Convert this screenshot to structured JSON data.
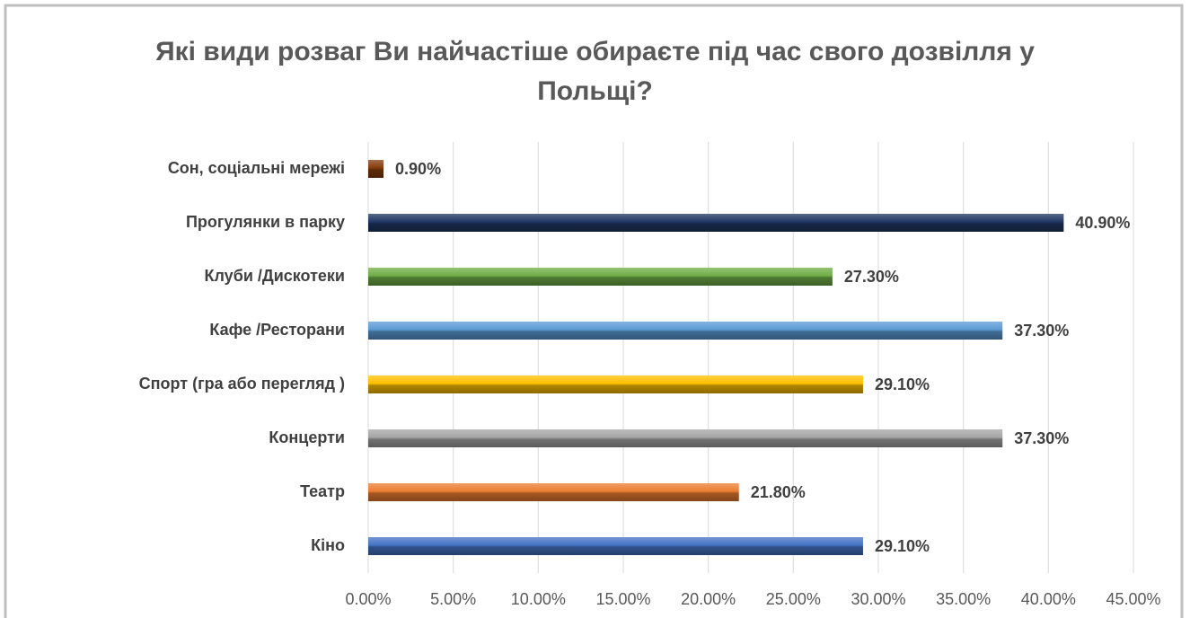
{
  "chart_data": {
    "type": "bar",
    "orientation": "horizontal",
    "title": "Які види розваг Ви найчастіше обираєте під час свого дозвілля у Польщі?",
    "categories": [
      "Сон, соціальні мережі",
      "Прогулянки в парку",
      "Клуби /Дискотеки",
      "Кафе /Ресторани",
      "Спорт (гра або перегляд )",
      "Концерти",
      "Театр",
      "Кіно"
    ],
    "values": [
      0.9,
      40.9,
      27.3,
      37.3,
      29.1,
      37.3,
      21.8,
      29.1
    ],
    "value_labels": [
      "0.90%",
      "40.90%",
      "27.30%",
      "37.30%",
      "29.10%",
      "37.30%",
      "21.80%",
      "29.10%"
    ],
    "colors": [
      "#843c0c",
      "#203864",
      "#70ad47",
      "#5b9bd5",
      "#ffc000",
      "#a5a5a5",
      "#ed7d31",
      "#4472c4"
    ],
    "xlim": [
      0,
      45
    ],
    "xticks": [
      {
        "value": 0,
        "label": "0.00%"
      },
      {
        "value": 5,
        "label": "5.00%"
      },
      {
        "value": 10,
        "label": "10.00%"
      },
      {
        "value": 15,
        "label": "15.00%"
      },
      {
        "value": 20,
        "label": "20.00%"
      },
      {
        "value": 25,
        "label": "25.00%"
      },
      {
        "value": 30,
        "label": "30.00%"
      },
      {
        "value": 35,
        "label": "35.00%"
      },
      {
        "value": 40,
        "label": "40.00%"
      },
      {
        "value": 45,
        "label": "45.00%"
      }
    ],
    "grid": true
  }
}
